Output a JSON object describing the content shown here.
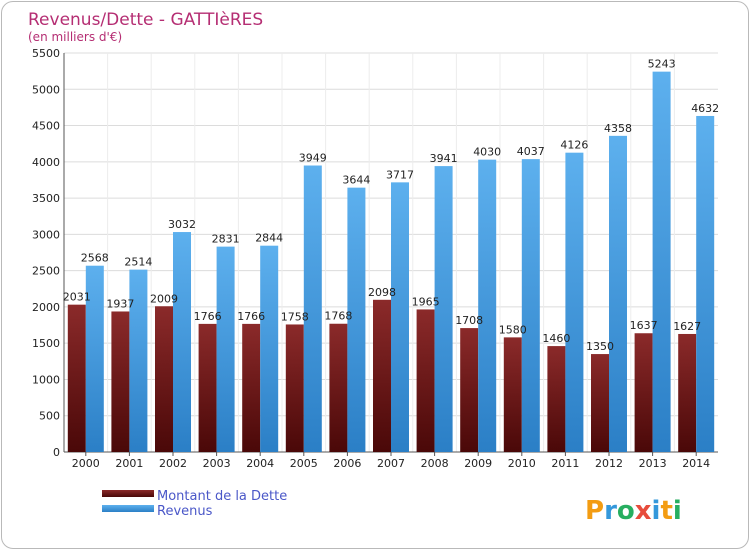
{
  "chart_data": {
    "type": "bar",
    "title": "Revenus/Dette - GATTIèRES",
    "subtitle": "(en milliers d'€)",
    "categories": [
      "2000",
      "2001",
      "2002",
      "2003",
      "2004",
      "2005",
      "2006",
      "2007",
      "2008",
      "2009",
      "2010",
      "2011",
      "2012",
      "2013",
      "2014"
    ],
    "series": [
      {
        "name": "Montant de la Dette",
        "color": "#7a1e1e",
        "values": [
          2031,
          1937,
          2009,
          1766,
          1766,
          1758,
          1768,
          2098,
          1965,
          1708,
          1580,
          1460,
          1350,
          1637,
          1627
        ],
        "labels": [
          "2031",
          "1937",
          "2009",
          "1766",
          "1766",
          "1758",
          "1768",
          "2098",
          "1965",
          "1708",
          "1580",
          "1460",
          "1350",
          "1637",
          "1627"
        ]
      },
      {
        "name": "Revenus",
        "color": "#4ea3e6",
        "values": [
          2568,
          2514,
          3032,
          2831,
          2844,
          3949,
          3644,
          3717,
          3941,
          4030,
          4037,
          4126,
          4358,
          5243,
          4632
        ],
        "labels": [
          "2568",
          "2514",
          "3032",
          "2831",
          "2844",
          "3949",
          "3644",
          "3717",
          "3941",
          "4030",
          "4037",
          "4126",
          "4358",
          "5243",
          "4632"
        ]
      }
    ],
    "ylim": [
      0,
      5500
    ],
    "yticks": [
      0,
      500,
      1000,
      1500,
      2000,
      2500,
      3000,
      3500,
      4000,
      4500,
      5000,
      5500
    ],
    "grid": true,
    "legend": "bottom-left"
  },
  "logo": {
    "letters": [
      "P",
      "r",
      "o",
      "x",
      "i",
      "t",
      "i"
    ],
    "colors": [
      "#f39c12",
      "#3498db",
      "#27ae60",
      "#e74c3c",
      "#3498db",
      "#f39c12",
      "#27ae60"
    ]
  }
}
